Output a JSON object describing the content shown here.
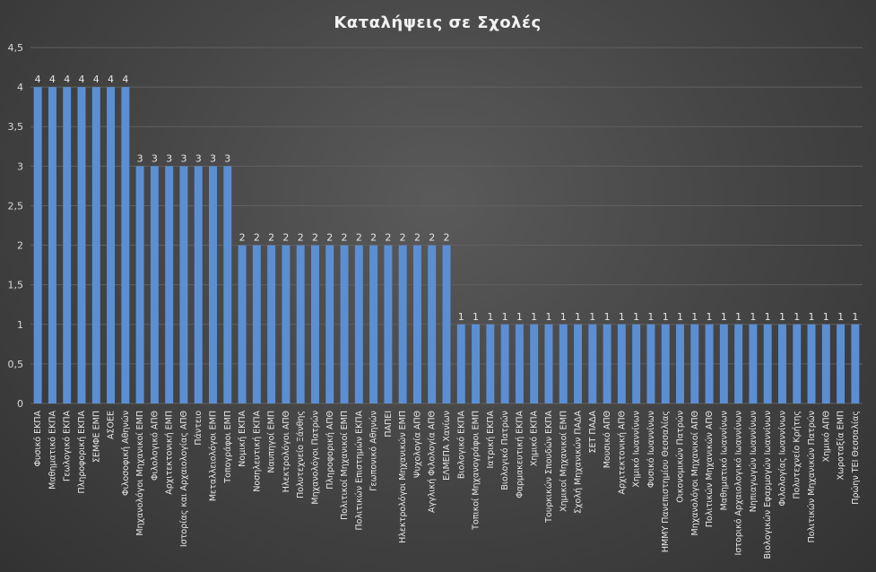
{
  "chart_data": {
    "type": "bar",
    "title": "Καταλήψεις  σε Σχολές",
    "xlabel": "",
    "ylabel": "",
    "ylim": [
      0,
      4.5
    ],
    "yticks": [
      "0",
      "0,5",
      "1",
      "1,5",
      "2",
      "2,5",
      "3",
      "3,5",
      "4",
      "4,5"
    ],
    "grid": true,
    "bar_color": "#5b8fd4",
    "categories": [
      "Φυσικό ΕΚΠΑ",
      "Μαθηματικό ΕΚΠΑ",
      "Γεωλογικό ΕΚΠΑ",
      "Πληροφορική ΕΚΠΑ",
      "ΣΕΜΦΕ ΕΜΠ",
      "ΑΣΟΕΕ",
      "Φιλοσοφική Αθηνών",
      "Μηχανολόγοι Μηχανικοί ΕΜΠ",
      "Φιλολογικό ΑΠΘ",
      "Αρχιτεκτονική ΕΜΠ",
      "Ιστορίας και Αρχαιολογίας ΑΠΘ",
      "Πάντειο",
      "Μεταλλειολόγοι ΕΜΠ",
      "Τοπογράφοι ΕΜΠ",
      "Νομική ΕΚΠΑ",
      "Νοσηλευτική ΕΚΠΑ",
      "Ναυπηγοί ΕΜΠ",
      "Ηλεκτρολόγοι ΑΠΘ",
      "Πολυτεχνείο Ξάνθης",
      "Μηχανολόγοι Πατρών",
      "Πληροφορική ΑΠΘ",
      "Πολιτικοί Μηχανικοί ΕΜΠ",
      "Πολιτικών Επιστημών ΕΚΠΑ",
      "Γεωπονικό Αθηνών",
      "ΠΑΠΕΙ",
      "Ηλεκτρολόγοι Μηχανικών ΕΜΠ",
      "Ψυχολογία ΑΠΘ",
      "Αγγλική Φιλολογία ΑΠΘ",
      "ΕΛΜΕΠΑ Χανίων",
      "Βιολογικό ΕΚΠΑ",
      "Τοπικοί Μηχανογράφοι ΕΜΠ",
      "Ιατρική ΕΚΠΑ",
      "Βιολογικό Πατρών",
      "Φαρμακευτική ΕΚΠΑ",
      "Χημικό ΕΚΠΑ",
      "Τουρκικών Σπουδών ΕΚΠΑ",
      "Χημικοί Μηχανικοί ΕΜΠ",
      "Σχολή Μηχανικών ΠΑΔΑ",
      "ΣΕΤ ΠΑΔΑ",
      "Μουσικό ΑΠΘ",
      "Αρχιτεκτονική ΑΠΘ",
      "Χημικό Ιωαννίνων",
      "Φυσικό Ιωαννίνων",
      "ΗΜΜΥ Πανεπιστημίου Θεσσαλίας",
      "Οικονομικών Πατρών",
      "Μηχανολόγοι Μηχανικοί ΑΠΘ",
      "Πολιτικών Μηχανικών ΑΠΘ",
      "Μαθηματικό Ιωαννίνων",
      "Ιστορικό Αρχαιολογικό Ιωαννίνων",
      "Νηπιαγωγών Ιωαννίνων",
      "Βιολογικών Εφαρμογών Ιωαννίνων",
      "Φιλολογίας Ιωαννίνων",
      "Πολυτεχνείο Κρήτης",
      "Πολιτικών Μηχανικών Πατρών",
      "Χημικό ΑΠΘ",
      "Χωροταξία ΕΜΠ",
      "Πρώην ΤΕΙ Θεσσαλίας"
    ],
    "values": [
      4,
      4,
      4,
      4,
      4,
      4,
      4,
      3,
      3,
      3,
      3,
      3,
      3,
      3,
      2,
      2,
      2,
      2,
      2,
      2,
      2,
      2,
      2,
      2,
      2,
      2,
      2,
      2,
      2,
      1,
      1,
      1,
      1,
      1,
      1,
      1,
      1,
      1,
      1,
      1,
      1,
      1,
      1,
      1,
      1,
      1,
      1,
      1,
      1,
      1,
      1,
      1,
      1,
      1,
      1,
      1,
      1
    ],
    "data_labels": [
      "4",
      "4",
      "4",
      "4",
      "4",
      "4",
      "4",
      "3",
      "3",
      "3",
      "3",
      "3",
      "3",
      "3",
      "2",
      "2",
      "2",
      "2",
      "2",
      "2",
      "2",
      "2",
      "2",
      "2",
      "2",
      "2",
      "2",
      "2",
      "2",
      "1",
      "1",
      "1",
      "1",
      "1",
      "1",
      "1",
      "1",
      "1",
      "1",
      "1",
      "1",
      "1",
      "1",
      "1",
      "1",
      "1",
      "1",
      "1",
      "1",
      "1",
      "1",
      "1",
      "1",
      "1",
      "1",
      "1",
      "1"
    ]
  }
}
